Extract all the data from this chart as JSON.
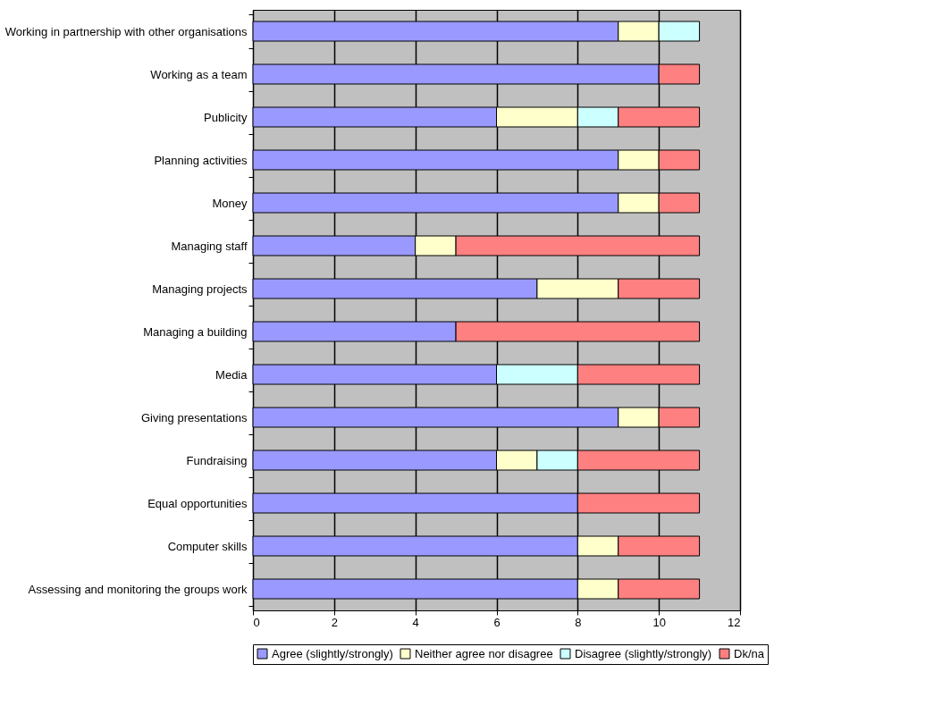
{
  "chart_data": {
    "type": "bar",
    "orientation": "horizontal",
    "stacked": true,
    "categories": [
      "Working in partnership with other organisations",
      "Working as a team",
      "Publicity",
      "Planning activities",
      "Money",
      "Managing staff",
      "Managing projects",
      "Managing a building",
      "Media",
      "Giving presentations",
      "Fundraising",
      "Equal opportunities",
      "Computer skills",
      "Assessing and monitoring the groups work"
    ],
    "series": [
      {
        "name": "Agree (slightly/strongly)",
        "color": "#9999ff",
        "values": [
          9,
          10,
          6,
          9,
          9,
          4,
          7,
          5,
          6,
          9,
          6,
          8,
          8,
          8
        ]
      },
      {
        "name": "Neither agree nor disagree",
        "color": "#ffffcc",
        "values": [
          1,
          0,
          2,
          1,
          1,
          1,
          2,
          0,
          0,
          1,
          1,
          0,
          1,
          1
        ]
      },
      {
        "name": "Disagree (slightly/strongly)",
        "color": "#ccffff",
        "values": [
          1,
          0,
          1,
          0,
          0,
          0,
          0,
          0,
          2,
          0,
          1,
          0,
          0,
          0
        ]
      },
      {
        "name": "Dk/na",
        "color": "#ff8080",
        "values": [
          0,
          1,
          2,
          1,
          1,
          6,
          2,
          6,
          3,
          1,
          3,
          3,
          2,
          2
        ]
      }
    ],
    "xlim": [
      0,
      12
    ],
    "xticks": [
      0,
      2,
      4,
      6,
      8,
      10,
      12
    ],
    "grid": "x",
    "legend": "bottom"
  }
}
